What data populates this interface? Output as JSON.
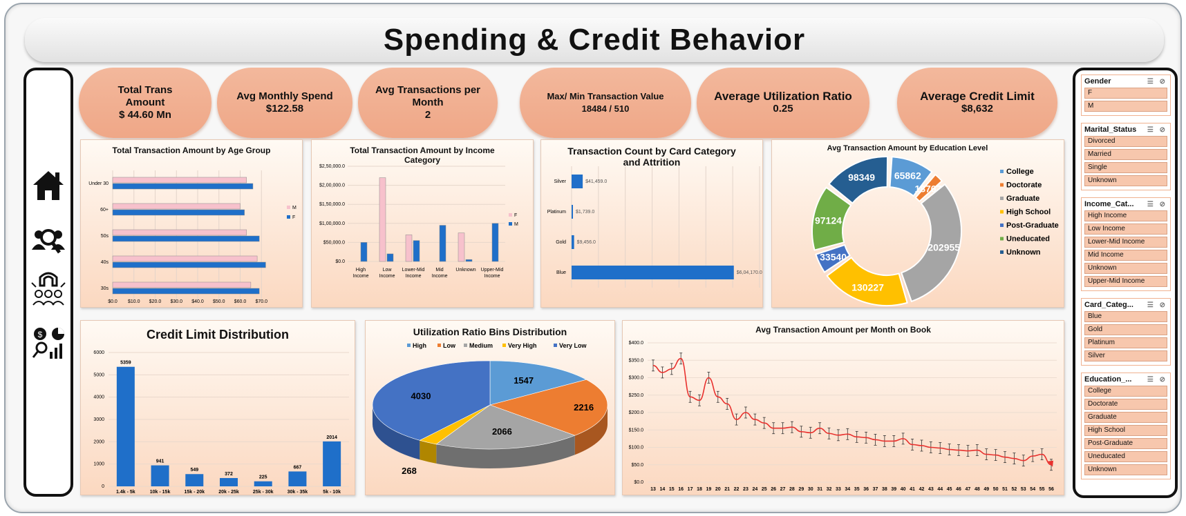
{
  "title": "Spending & Credit Behavior",
  "nav": {
    "icons": [
      "home-icon",
      "users-search-icon",
      "customer-magnet-icon",
      "analytics-icon"
    ]
  },
  "kpis": [
    {
      "title": "Total Trans Amount",
      "value": "$ 44.60 Mn"
    },
    {
      "title": "Avg Monthly Spend",
      "value": "$122.58"
    },
    {
      "title": "Avg Transactions per Month",
      "value": "2"
    },
    {
      "title": "Max/  Min Transaction Value",
      "value": "18484 / 510"
    },
    {
      "title": "Average Utilization Ratio",
      "value": "0.25"
    },
    {
      "title": "Average Credit Limit",
      "value": "$8,632"
    }
  ],
  "slicers": [
    {
      "title": "Gender",
      "items": [
        "F",
        "M"
      ]
    },
    {
      "title": "Marital_Status",
      "items": [
        "Divorced",
        "Married",
        "Single",
        "Unknown"
      ]
    },
    {
      "title": "Income_Cat...",
      "items": [
        "High Income",
        "Low Income",
        "Lower-Mid Income",
        "Mid Income",
        "Unknown",
        "Upper-Mid Income"
      ]
    },
    {
      "title": "Card_Categ...",
      "items": [
        "Blue",
        "Gold",
        "Platinum",
        "Silver"
      ]
    },
    {
      "title": "Education_...",
      "items": [
        "College",
        "Doctorate",
        "Graduate",
        "High School",
        "Post-Graduate",
        "Uneducated",
        "Unknown"
      ]
    }
  ],
  "chart_data": [
    {
      "id": "age",
      "type": "bar",
      "title": "Total Transaction Amount by Age Group",
      "categories": [
        "Under 30",
        "60+",
        "50s",
        "40s",
        "30s"
      ],
      "series": [
        {
          "name": "M",
          "values": [
            63,
            60,
            63,
            68,
            65
          ]
        },
        {
          "name": "F",
          "values": [
            66,
            62,
            69,
            72,
            69
          ]
        }
      ],
      "xticks": [
        "$0.0",
        "$10.0",
        "$20.0",
        "$30.0",
        "$40.0",
        "$50.0",
        "$60.0",
        "$70.0"
      ],
      "xlim": [
        0,
        80
      ],
      "legend": "right"
    },
    {
      "id": "income",
      "type": "bar",
      "title": "Total Transaction Amount by Income Category",
      "categories": [
        "High Income",
        "Low Income",
        "Lower-Mid Income",
        "Mid Income",
        "Unknown",
        "Upper-Mid Income"
      ],
      "series": [
        {
          "name": "F",
          "values": [
            0,
            220000,
            70000,
            0,
            75000,
            0
          ]
        },
        {
          "name": "M",
          "values": [
            50000,
            20000,
            55000,
            95000,
            5000,
            100000
          ]
        }
      ],
      "yticks": [
        "$0.0",
        "$50,000.0",
        "$1,00,000.0",
        "$1,50,000.0",
        "$2,00,000.0",
        "$2,50,000.0"
      ],
      "ylim": [
        0,
        250000
      ],
      "legend": "right"
    },
    {
      "id": "card",
      "type": "bar",
      "title": "Transaction Count by Card Category and Attrition",
      "categories": [
        "Silver",
        "Platinum",
        "Gold",
        "Blue"
      ],
      "values": [
        41459,
        1739,
        9456,
        604170
      ],
      "labels": [
        "$41,459.0",
        "$1,739.0",
        "$9,456.0",
        "$6,04,170.0"
      ],
      "xlim": [
        0,
        700000
      ]
    },
    {
      "id": "education",
      "type": "pie",
      "title": "Avg Transaction Amount by Education Level",
      "labels": [
        "College",
        "Doctorate",
        "Graduate",
        "High School",
        "Post-Graduate",
        "Uneducated",
        "Unknown"
      ],
      "values": [
        65862,
        18767,
        202955,
        130227,
        33540,
        97124,
        98349
      ],
      "colors": [
        "#5b9bd5",
        "#ed7d31",
        "#a5a5a5",
        "#ffc000",
        "#4472c4",
        "#70ad47",
        "#255e91"
      ],
      "display": [
        "65862",
        "18767",
        "202955",
        "130227",
        "33540",
        "97124",
        "98349"
      ],
      "legend": "right"
    },
    {
      "id": "credit",
      "type": "bar",
      "title": "Credit Limit Distribution",
      "categories": [
        "1.4k - 5k",
        "10k - 15k",
        "15k - 20k",
        "20k - 25k",
        "25k - 30k",
        "30k - 35k",
        "5k - 10k"
      ],
      "values": [
        5359,
        941,
        549,
        372,
        225,
        667,
        2014
      ],
      "yticks": [
        "0",
        "1000",
        "2000",
        "3000",
        "4000",
        "5000",
        "6000"
      ],
      "ylim": [
        0,
        6000
      ]
    },
    {
      "id": "util",
      "type": "pie",
      "title": "Utilization Ratio Bins Distribution",
      "labels": [
        "High",
        "Low",
        "Medium",
        "Very High",
        "Very Low"
      ],
      "values": [
        1547,
        2216,
        2066,
        268,
        4030
      ],
      "colors": [
        "#5b9bd5",
        "#ed7d31",
        "#a5a5a5",
        "#ffc000",
        "#4472c4"
      ],
      "legend": "top"
    },
    {
      "id": "months",
      "type": "line",
      "title": "Avg Transaction Amount per Month on Book",
      "x": [
        13,
        14,
        15,
        16,
        17,
        18,
        19,
        20,
        21,
        22,
        23,
        24,
        25,
        26,
        27,
        28,
        29,
        30,
        31,
        32,
        33,
        34,
        35,
        36,
        37,
        38,
        39,
        40,
        41,
        42,
        43,
        44,
        45,
        46,
        47,
        48,
        49,
        50,
        51,
        52,
        53,
        54,
        55,
        56
      ],
      "y": [
        335,
        315,
        325,
        355,
        245,
        235,
        300,
        245,
        225,
        180,
        200,
        180,
        170,
        155,
        155,
        158,
        145,
        142,
        155,
        140,
        135,
        138,
        130,
        128,
        122,
        118,
        118,
        125,
        108,
        105,
        100,
        98,
        94,
        92,
        90,
        92,
        80,
        78,
        72,
        68,
        62,
        75,
        80,
        50
      ],
      "yticks": [
        "$0.0",
        "$50.0",
        "$100.0",
        "$150.0",
        "$200.0",
        "$250.0",
        "$300.0",
        "$350.0",
        "$400.0"
      ],
      "ylim": [
        0,
        400
      ],
      "color": "#e8302d"
    }
  ]
}
